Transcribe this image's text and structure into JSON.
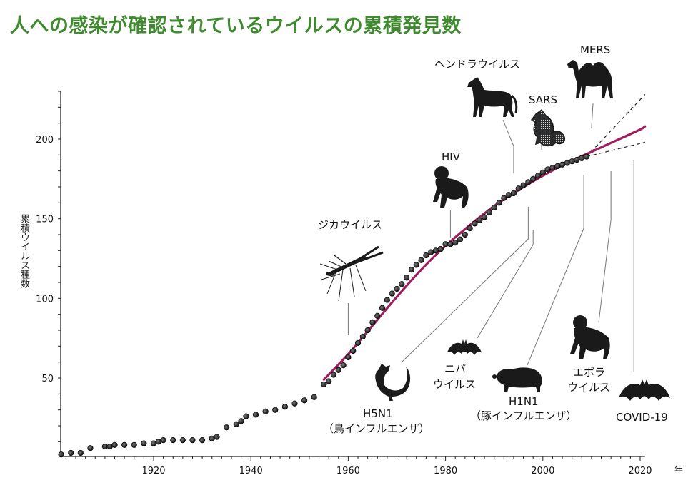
{
  "title": "人への感染が確認されているウイルスの累積発見数",
  "colors": {
    "title": "#3f8a2f",
    "fit_curve": "#9e1f5e",
    "points": "#222222"
  },
  "chart_data": {
    "type": "scatter",
    "title": "人への感染が確認されているウイルスの累積発見数",
    "xlabel": "年",
    "ylabel": "累積ウイルス種数",
    "xlim": [
      1900,
      2021
    ],
    "ylim": [
      0,
      230
    ],
    "x_ticks": [
      1920,
      1940,
      1960,
      1980,
      2000,
      2020
    ],
    "y_ticks": [
      50,
      100,
      150,
      200
    ],
    "grid": false,
    "series": [
      {
        "points": [
          [
            1901,
            2
          ],
          [
            1903,
            3
          ],
          [
            1905,
            3
          ],
          [
            1907,
            6
          ],
          [
            1910,
            7
          ],
          [
            1911,
            7
          ],
          [
            1912,
            8
          ],
          [
            1914,
            8
          ],
          [
            1916,
            8
          ],
          [
            1918,
            9
          ],
          [
            1920,
            9
          ],
          [
            1921,
            10
          ],
          [
            1922,
            11
          ],
          [
            1924,
            11
          ],
          [
            1926,
            11
          ],
          [
            1928,
            11
          ],
          [
            1930,
            11
          ],
          [
            1932,
            12
          ],
          [
            1933,
            13
          ],
          [
            1935,
            19
          ],
          [
            1937,
            21
          ],
          [
            1938,
            23
          ],
          [
            1939,
            26
          ],
          [
            1941,
            27
          ],
          [
            1943,
            29
          ],
          [
            1945,
            30
          ],
          [
            1947,
            32
          ],
          [
            1949,
            34
          ],
          [
            1951,
            36
          ],
          [
            1953,
            38
          ],
          [
            1955,
            46
          ],
          [
            1956,
            48
          ],
          [
            1957,
            52
          ],
          [
            1958,
            55
          ],
          [
            1959,
            58
          ],
          [
            1960,
            63
          ],
          [
            1961,
            67
          ],
          [
            1962,
            72
          ],
          [
            1963,
            76
          ],
          [
            1964,
            80
          ],
          [
            1965,
            85
          ],
          [
            1966,
            89
          ],
          [
            1967,
            94
          ],
          [
            1968,
            99
          ],
          [
            1969,
            103
          ],
          [
            1970,
            106
          ],
          [
            1971,
            109
          ],
          [
            1972,
            113
          ],
          [
            1973,
            118
          ],
          [
            1974,
            121
          ],
          [
            1975,
            124
          ],
          [
            1976,
            127
          ],
          [
            1977,
            129
          ],
          [
            1978,
            130
          ],
          [
            1979,
            131
          ],
          [
            1980,
            134
          ],
          [
            1981,
            134
          ],
          [
            1982,
            135
          ],
          [
            1983,
            137
          ],
          [
            1984,
            140
          ],
          [
            1985,
            144
          ],
          [
            1986,
            147
          ],
          [
            1987,
            149
          ],
          [
            1988,
            151
          ],
          [
            1989,
            154
          ],
          [
            1990,
            157
          ],
          [
            1991,
            160
          ],
          [
            1992,
            163
          ],
          [
            1993,
            165
          ],
          [
            1994,
            166
          ],
          [
            1995,
            169
          ],
          [
            1996,
            171
          ],
          [
            1997,
            173
          ],
          [
            1998,
            175
          ],
          [
            1999,
            177
          ],
          [
            2000,
            179
          ],
          [
            2001,
            181
          ],
          [
            2002,
            182
          ],
          [
            2003,
            183
          ],
          [
            2004,
            184
          ],
          [
            2005,
            185
          ],
          [
            2006,
            186
          ],
          [
            2007,
            187
          ],
          [
            2008,
            188
          ],
          [
            2009,
            189
          ]
        ]
      }
    ],
    "fit_curve": {
      "points": [
        [
          1955,
          49
        ],
        [
          1960,
          65
        ],
        [
          1965,
          83
        ],
        [
          1970,
          101
        ],
        [
          1975,
          118
        ],
        [
          1980,
          133
        ],
        [
          1985,
          146
        ],
        [
          1990,
          158
        ],
        [
          1995,
          168
        ],
        [
          2000,
          177
        ],
        [
          2005,
          185
        ],
        [
          2010,
          192
        ],
        [
          2015,
          199
        ],
        [
          2020,
          206
        ],
        [
          2021,
          208
        ]
      ]
    },
    "projection_upper": [
      [
        2009,
        189
      ],
      [
        2021,
        228
      ]
    ],
    "projection_lower": [
      [
        2009,
        189
      ],
      [
        2021,
        198
      ]
    ],
    "annotations": [
      {
        "label": "ジカウイルス",
        "icon": "mosquito-icon",
        "year": 1947
      },
      {
        "label": "HIV",
        "icon": "chimpanzee-icon",
        "year": 1981
      },
      {
        "label": "ヘンドラウイルス",
        "icon": "horse-icon",
        "year": 1994
      },
      {
        "label": "SARS",
        "icon": "civet-icon",
        "year": 2003
      },
      {
        "label": "MERS",
        "icon": "camel-icon",
        "year": 2012
      },
      {
        "label": "H5N1",
        "sublabel": "（鳥インフルエンザ）",
        "icon": "chicken-icon",
        "year": 1997
      },
      {
        "label": "ニパ",
        "sublabel": "ウイルス",
        "icon": "bat-icon",
        "year": 1998
      },
      {
        "label": "H1N1",
        "sublabel": "（豚インフルエンザ）",
        "icon": "pig-icon",
        "year": 2009
      },
      {
        "label": "エボラ",
        "sublabel": "ウイルス",
        "icon": "chimpanzee-icon",
        "year": 2014
      },
      {
        "label": "COVID-19",
        "icon": "bat-icon",
        "year": 2019
      }
    ]
  }
}
